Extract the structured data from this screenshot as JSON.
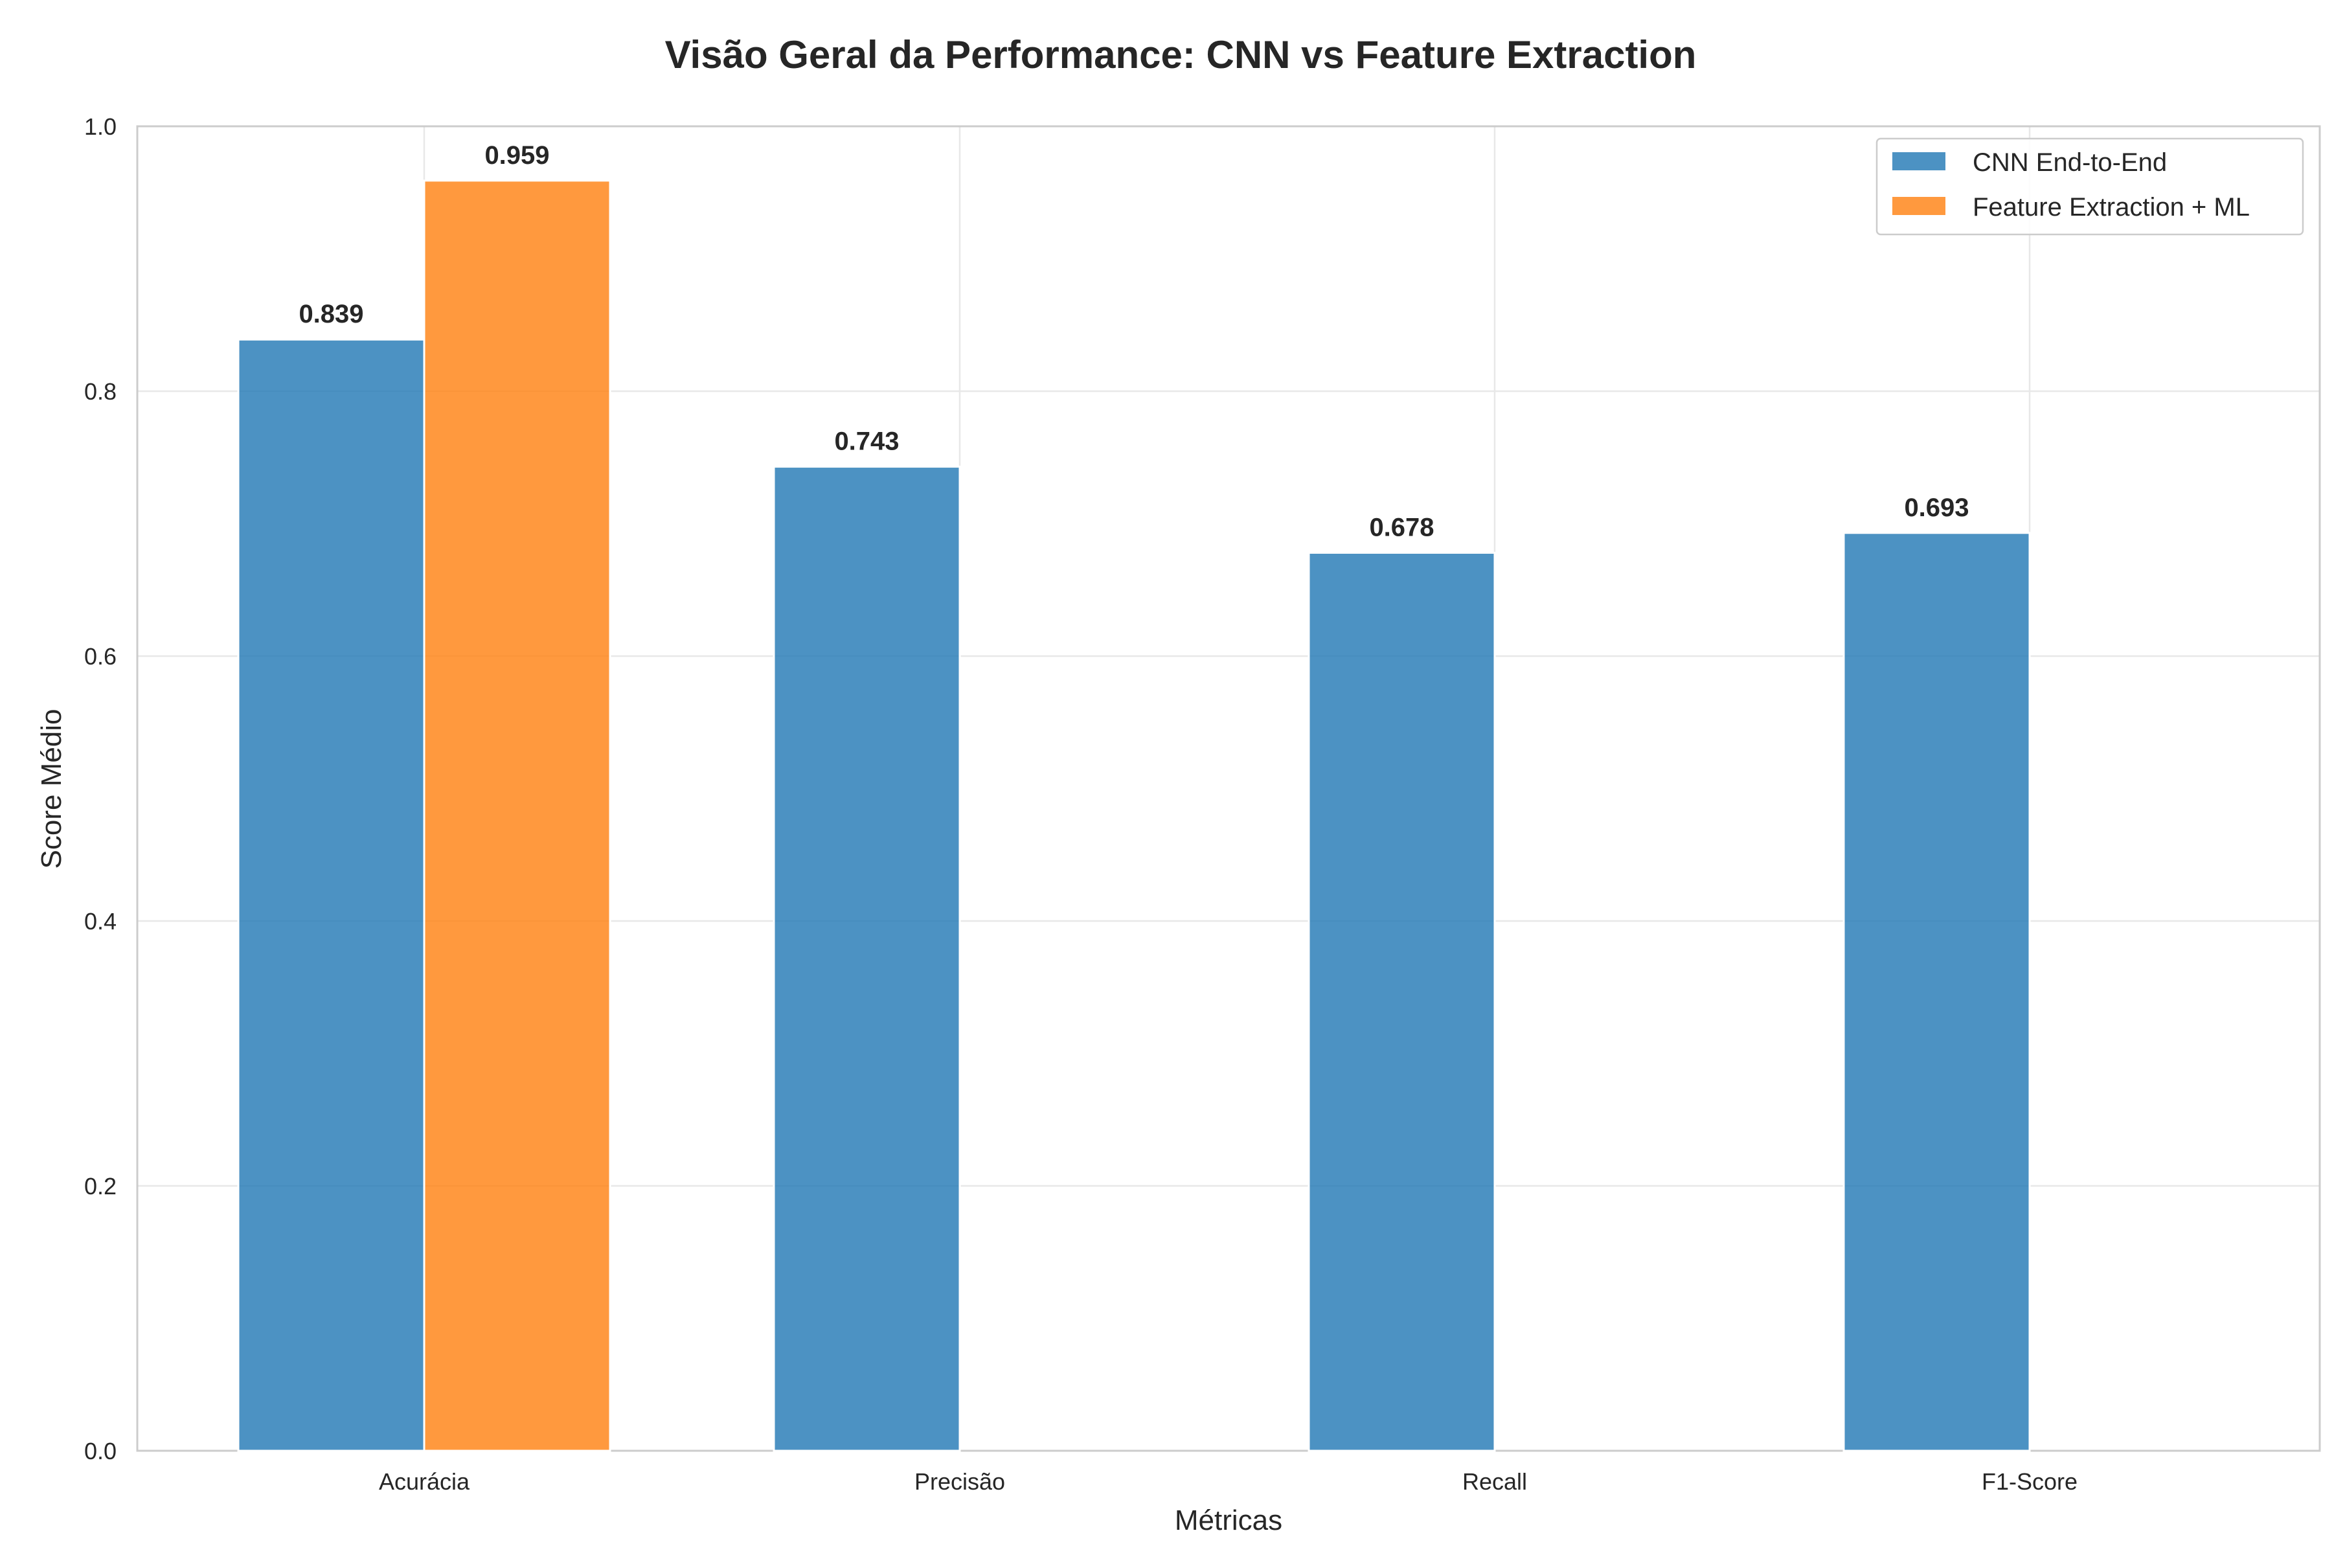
{
  "chart_data": {
    "type": "bar",
    "title": "Visão Geral da Performance: CNN vs Feature Extraction",
    "xlabel": "Métricas",
    "ylabel": "Score Médio",
    "categories": [
      "Acurácia",
      "Precisão",
      "Recall",
      "F1-Score"
    ],
    "series": [
      {
        "name": "CNN End-to-End",
        "color": "#1f77b4",
        "values": [
          0.839,
          0.743,
          0.678,
          0.693
        ],
        "labels": [
          "0.839",
          "0.743",
          "0.678",
          "0.693"
        ]
      },
      {
        "name": "Feature Extraction + ML",
        "color": "#ff7f0e",
        "values": [
          0.959,
          null,
          null,
          null
        ],
        "labels": [
          "0.959",
          null,
          null,
          null
        ]
      }
    ],
    "ylim": [
      0,
      1.0
    ],
    "yticks": [
      0.0,
      0.2,
      0.4,
      0.6,
      0.8,
      1.0
    ],
    "ytick_labels": [
      "0.0",
      "0.2",
      "0.4",
      "0.6",
      "0.8",
      "1.0"
    ],
    "grid": true,
    "legend_position": "top-right"
  }
}
